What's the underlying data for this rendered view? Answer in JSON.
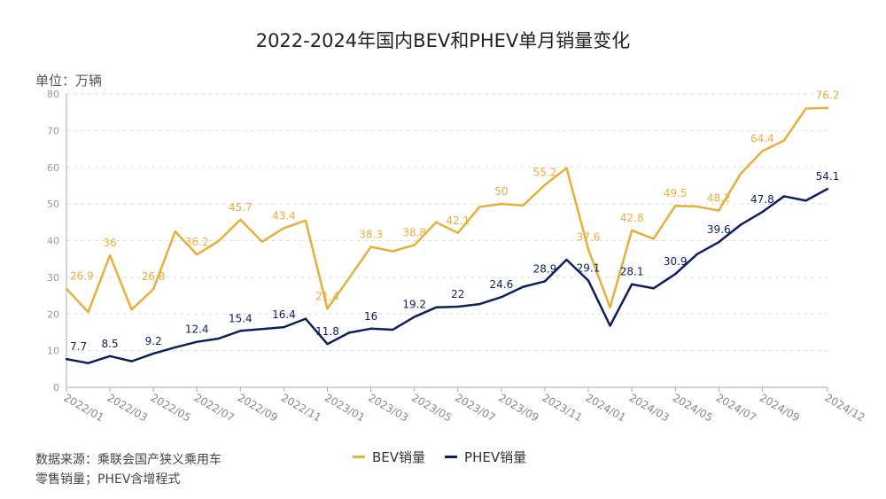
{
  "title": "2022-2024年国内BEV和PHEV单月销量变化",
  "unit_label": "单位：万辆",
  "source_lines": [
    "数据来源：乘联会国产狭义乘用车",
    "零售销量；PHEV含增程式"
  ],
  "chart_data": {
    "type": "line",
    "title": "2022-2024年国内BEV和PHEV单月销量变化",
    "ylabel": "单位：万辆",
    "ylim": [
      0,
      80
    ],
    "yticks": [
      0,
      10,
      20,
      30,
      40,
      50,
      60,
      70,
      80
    ],
    "grid": true,
    "legend_position": "bottom",
    "x": [
      "2022/01",
      "2022/02",
      "2022/03",
      "2022/04",
      "2022/05",
      "2022/06",
      "2022/07",
      "2022/08",
      "2022/09",
      "2022/10",
      "2022/11",
      "2022/12",
      "2023/01",
      "2023/02",
      "2023/03",
      "2023/04",
      "2023/05",
      "2023/06",
      "2023/07",
      "2023/08",
      "2023/09",
      "2023/10",
      "2023/11",
      "2023/12",
      "2024/01",
      "2024/02",
      "2024/03",
      "2024/04",
      "2024/05",
      "2024/06",
      "2024/07",
      "2024/08",
      "2024/09",
      "2024/10",
      "2024/11",
      "2024/12"
    ],
    "xtick_labels": [
      "2022/01",
      "2022/03",
      "2022/05",
      "2022/07",
      "2022/09",
      "2022/11",
      "2023/01",
      "2023/03",
      "2023/05",
      "2023/07",
      "2023/09",
      "2023/11",
      "2024/01",
      "2024/03",
      "2024/05",
      "2024/07",
      "2024/09",
      "2024/12"
    ],
    "series": [
      {
        "name": "BEV销量",
        "color": "#E6AF3C",
        "values": [
          26.9,
          20.5,
          36,
          21.2,
          26.8,
          42.5,
          36.2,
          39.9,
          45.7,
          39.7,
          43.4,
          45.5,
          21.4,
          29.8,
          38.3,
          37.1,
          38.8,
          45.0,
          42.1,
          49.2,
          50,
          49.6,
          55.2,
          59.8,
          37.6,
          21.8,
          42.8,
          40.5,
          49.5,
          49.3,
          48.2,
          58.2,
          64.4,
          67.3,
          76.0,
          76.2
        ],
        "labels": [
          [
            "2022/01",
            "26.9"
          ],
          [
            "2022/03",
            "36"
          ],
          [
            "2022/05",
            "26.8"
          ],
          [
            "2022/07",
            "36.2"
          ],
          [
            "2022/09",
            "45.7"
          ],
          [
            "2022/11",
            "43.4"
          ],
          [
            "2023/01",
            "21.4"
          ],
          [
            "2023/03",
            "38.3"
          ],
          [
            "2023/05",
            "38.8"
          ],
          [
            "2023/07",
            "42.1"
          ],
          [
            "2023/09",
            "50"
          ],
          [
            "2023/11",
            "55.2"
          ],
          [
            "2024/01",
            "37.6"
          ],
          [
            "2024/03",
            "42.8"
          ],
          [
            "2024/05",
            "49.5"
          ],
          [
            "2024/07",
            "48.2"
          ],
          [
            "2024/09",
            "64.4"
          ],
          [
            "2024/12",
            "76.2"
          ]
        ]
      },
      {
        "name": "PHEV销量",
        "color": "#0D1F5C",
        "values": [
          7.7,
          6.6,
          8.5,
          7.1,
          9.2,
          10.9,
          12.4,
          13.3,
          15.4,
          15.9,
          16.4,
          18.7,
          11.8,
          14.9,
          16,
          15.7,
          19.2,
          21.8,
          22,
          22.7,
          24.6,
          27.4,
          28.9,
          34.8,
          29.1,
          16.8,
          28.1,
          27.0,
          30.9,
          36.3,
          39.6,
          44.3,
          47.8,
          52.1,
          50.9,
          54.1
        ],
        "labels": [
          [
            "2022/01",
            "7.7"
          ],
          [
            "2022/03",
            "8.5"
          ],
          [
            "2022/05",
            "9.2"
          ],
          [
            "2022/07",
            "12.4"
          ],
          [
            "2022/09",
            "15.4"
          ],
          [
            "2022/11",
            "16.4"
          ],
          [
            "2023/01",
            "11.8"
          ],
          [
            "2023/03",
            "16"
          ],
          [
            "2023/05",
            "19.2"
          ],
          [
            "2023/07",
            "22"
          ],
          [
            "2023/09",
            "24.6"
          ],
          [
            "2023/11",
            "28.9"
          ],
          [
            "2024/01",
            "29.1"
          ],
          [
            "2024/03",
            "28.1"
          ],
          [
            "2024/05",
            "30.9"
          ],
          [
            "2024/07",
            "39.6"
          ],
          [
            "2024/09",
            "47.8"
          ],
          [
            "2024/12",
            "54.1"
          ]
        ]
      }
    ]
  }
}
